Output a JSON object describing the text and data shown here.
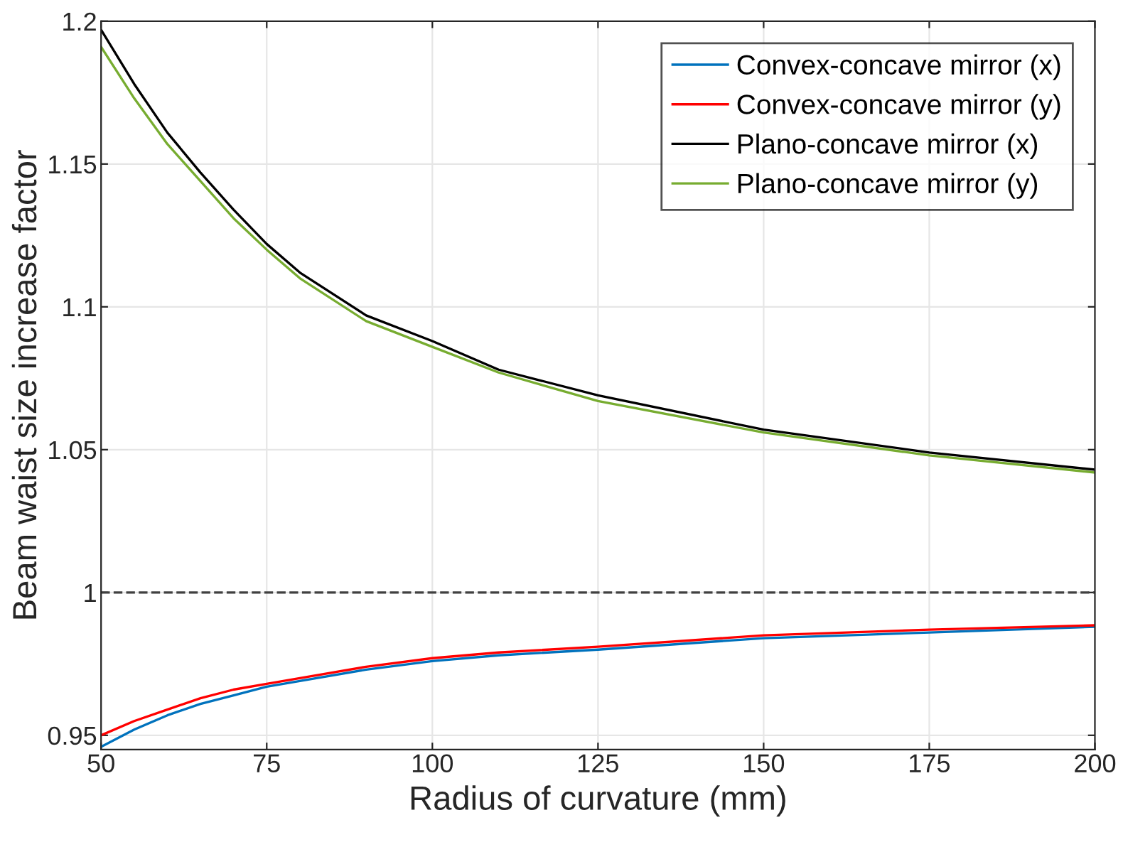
{
  "chart_data": {
    "type": "line",
    "xlabel": "Radius of curvature (mm)",
    "ylabel": "Beam waist size increase factor",
    "x": [
      50,
      55,
      60,
      65,
      70,
      75,
      80,
      90,
      100,
      110,
      125,
      150,
      175,
      200
    ],
    "series": [
      {
        "name": "Convex-concave mirror (x)",
        "color": "#0072bd",
        "values": [
          0.946,
          0.952,
          0.957,
          0.961,
          0.964,
          0.967,
          0.969,
          0.973,
          0.976,
          0.978,
          0.98,
          0.984,
          0.986,
          0.988
        ]
      },
      {
        "name": "Convex-concave mirror (y)",
        "color": "#ff0000",
        "values": [
          0.95,
          0.955,
          0.959,
          0.963,
          0.966,
          0.968,
          0.97,
          0.974,
          0.977,
          0.979,
          0.981,
          0.985,
          0.987,
          0.9885
        ]
      },
      {
        "name": "Plano-concave mirror (x)",
        "color": "#000000",
        "values": [
          1.197,
          1.178,
          1.161,
          1.147,
          1.134,
          1.122,
          1.112,
          1.097,
          1.088,
          1.078,
          1.069,
          1.057,
          1.049,
          1.043
        ]
      },
      {
        "name": "Plano-concave mirror (y)",
        "color": "#77ac30",
        "values": [
          1.191,
          1.173,
          1.157,
          1.144,
          1.131,
          1.12,
          1.11,
          1.095,
          1.086,
          1.077,
          1.067,
          1.056,
          1.048,
          1.042
        ]
      }
    ],
    "ref_lines": [
      {
        "axis": "y",
        "value": 1,
        "color": "#404040",
        "line_style": "dashed"
      }
    ],
    "xlim": [
      50,
      200
    ],
    "xticks": [
      50,
      75,
      100,
      125,
      150,
      175,
      200
    ],
    "ylim": [
      0.945,
      1.2
    ],
    "yticks": [
      0.95,
      1,
      1.05,
      1.1,
      1.15,
      1.2
    ],
    "grid": true,
    "legend": "top right",
    "marker": "none",
    "line_style": "solid"
  }
}
